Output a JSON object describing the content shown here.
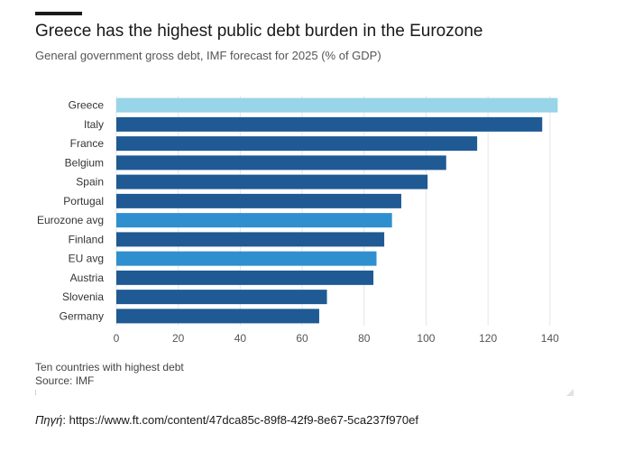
{
  "title": "Greece has the highest public debt burden in the Eurozone",
  "subtitle": "General government gross debt, IMF forecast for 2025 (% of GDP)",
  "note": "Ten countries with highest debt",
  "source": "Source: IMF",
  "link": {
    "label": "Πηγή",
    "text": ": https://www.ft.com/content/47dca85c-89f8-42f9-8e67-5ca237f970ef"
  },
  "colors": {
    "highlight": "#98d5e8",
    "country": "#1f5a94",
    "average": "#2f8fcf",
    "grid": "#e6e6e6"
  },
  "chart_data": {
    "type": "bar",
    "orientation": "horizontal",
    "title": "Greece has the highest public debt burden in the Eurozone",
    "subtitle": "General government gross debt, IMF forecast for 2025 (% of GDP)",
    "xlim": [
      0,
      145
    ],
    "x_ticks": [
      0,
      20,
      40,
      60,
      80,
      100,
      120,
      140
    ],
    "grid": true,
    "categories": [
      "Greece",
      "Italy",
      "France",
      "Belgium",
      "Spain",
      "Portugal",
      "Eurozone avg",
      "Finland",
      "EU avg",
      "Austria",
      "Slovenia",
      "Germany"
    ],
    "values": [
      142.5,
      137.5,
      116.5,
      106.5,
      100.5,
      92,
      89,
      86.5,
      84,
      83,
      68,
      65.5
    ],
    "bar_kind": [
      "highlight",
      "country",
      "country",
      "country",
      "country",
      "country",
      "average",
      "country",
      "average",
      "country",
      "country",
      "country"
    ]
  }
}
